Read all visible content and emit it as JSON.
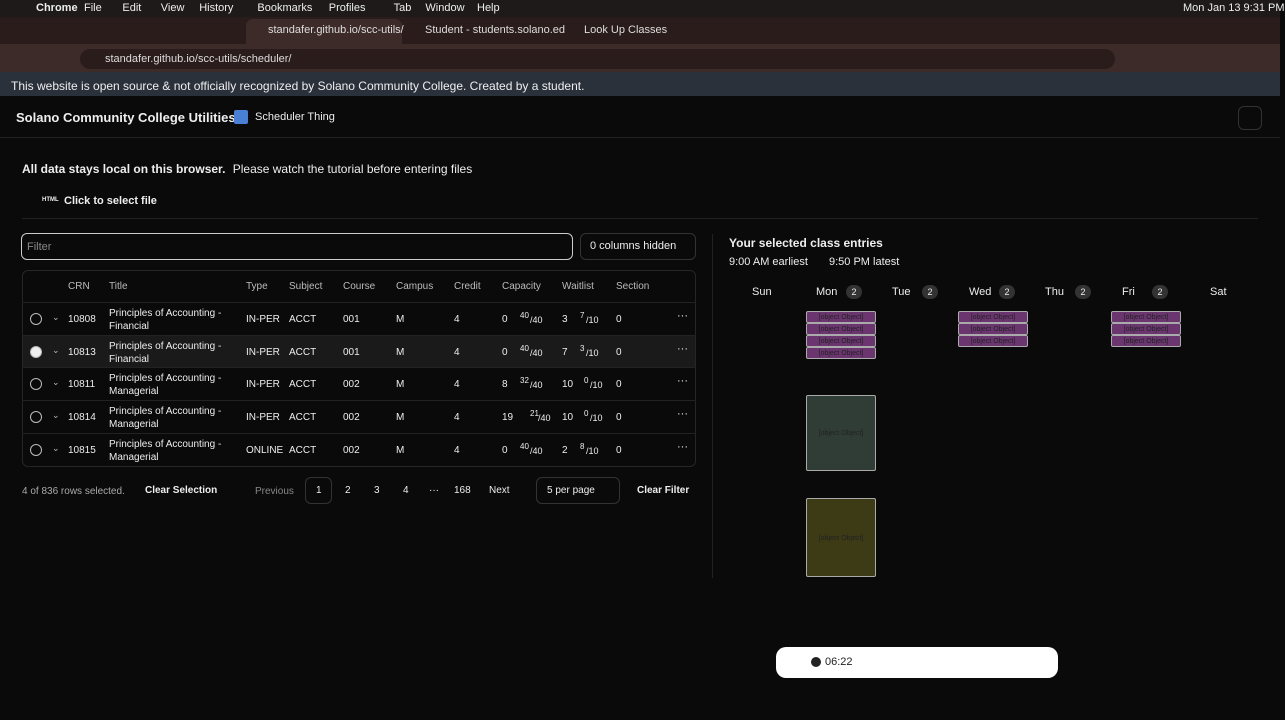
{
  "menubar": {
    "app": "Chrome",
    "items": [
      "File",
      "Edit",
      "View",
      "History",
      "Bookmarks",
      "Profiles",
      "Tab",
      "Window",
      "Help"
    ],
    "clock": "Mon Jan 13  9:31 PM"
  },
  "tabs": [
    "standafer.github.io/scc-utils/",
    "Student - students.solano.ed",
    "Look Up Classes"
  ],
  "url": "standafer.github.io/scc-utils/scheduler/",
  "banner": "This website is open source & not officially recognized by Solano Community College. Created by a student.",
  "nav": {
    "title": "Solano Community College Utilities",
    "link": "Scheduler Thing"
  },
  "notice": {
    "bold": "All data stays local on this browser.",
    "text": "Please watch the tutorial before entering files"
  },
  "file": {
    "badge": "HTML",
    "label": "Click to select file"
  },
  "filter": {
    "placeholder": "Filter",
    "columns": "0 columns hidden"
  },
  "table": {
    "headers": [
      "CRN",
      "Title",
      "Type",
      "Subject",
      "Course",
      "Campus",
      "Credit",
      "Capacity",
      "Waitlist",
      "Section"
    ],
    "rows": [
      {
        "crn": "10808",
        "title": "Principles of Accounting - Financial",
        "type": "IN-PER",
        "subject": "ACCT",
        "course": "001",
        "campus": "M",
        "credit": "4",
        "cap_open": "0",
        "cap_used": "40",
        "cap_max": "/40",
        "wl_open": "3",
        "wl_used": "7",
        "wl_max": "/10",
        "section": "0",
        "selected": false
      },
      {
        "crn": "10813",
        "title": "Principles of Accounting - Financial",
        "type": "IN-PER",
        "subject": "ACCT",
        "course": "001",
        "campus": "M",
        "credit": "4",
        "cap_open": "0",
        "cap_used": "40",
        "cap_max": "/40",
        "wl_open": "7",
        "wl_used": "3",
        "wl_max": "/10",
        "section": "0",
        "selected": true
      },
      {
        "crn": "10811",
        "title": "Principles of Accounting - Managerial",
        "type": "IN-PER",
        "subject": "ACCT",
        "course": "002",
        "campus": "M",
        "credit": "4",
        "cap_open": "8",
        "cap_used": "32",
        "cap_max": "/40",
        "wl_open": "10",
        "wl_used": "0",
        "wl_max": "/10",
        "section": "0",
        "selected": false
      },
      {
        "crn": "10814",
        "title": "Principles of Accounting - Managerial",
        "type": "IN-PER",
        "subject": "ACCT",
        "course": "002",
        "campus": "M",
        "credit": "4",
        "cap_open": "19",
        "cap_used": "21",
        "cap_max": "/40",
        "wl_open": "10",
        "wl_used": "0",
        "wl_max": "/10",
        "section": "0",
        "selected": false
      },
      {
        "crn": "10815",
        "title": "Principles of Accounting - Managerial",
        "type": "ONLINE",
        "subject": "ACCT",
        "course": "002",
        "campus": "M",
        "credit": "4",
        "cap_open": "0",
        "cap_used": "40",
        "cap_max": "/40",
        "wl_open": "2",
        "wl_used": "8",
        "wl_max": "/10",
        "section": "0",
        "selected": false
      }
    ]
  },
  "footer": {
    "selected": "4 of 836 rows selected.",
    "clear_selection": "Clear Selection",
    "previous": "Previous",
    "pages": [
      "1",
      "2",
      "3",
      "4",
      "···",
      "168"
    ],
    "next": "Next",
    "per_page": "5 per page",
    "clear_filter": "Clear Filter"
  },
  "calendar": {
    "title": "Your selected class entries",
    "earliest": "9:00 AM earliest",
    "latest": "9:50 PM latest",
    "days": [
      {
        "name": "Sun"
      },
      {
        "name": "Mon",
        "count": "2"
      },
      {
        "name": "Tue",
        "count": "2"
      },
      {
        "name": "Wed",
        "count": "2"
      },
      {
        "name": "Thu",
        "count": "2"
      },
      {
        "name": "Fri",
        "count": "2"
      },
      {
        "name": "Sat"
      }
    ],
    "blocks": [
      {
        "day": 1,
        "label": "MATH 021"
      },
      {
        "day": 1,
        "label": "MATH 021"
      },
      {
        "day": 1,
        "label": "MATH 021"
      },
      {
        "day": 1,
        "label": "TRAVEL VJO -> M"
      },
      {
        "day": 3,
        "label": "MATH 021"
      },
      {
        "day": 3,
        "label": "MATH 021"
      },
      {
        "day": 3,
        "label": "MATH 021"
      },
      {
        "day": 5,
        "label": "MATH 021"
      },
      {
        "day": 5,
        "label": "MATH 021"
      },
      {
        "day": 5,
        "label": "MATH 021"
      },
      {
        "day": 1,
        "label": "ADVM 101"
      },
      {
        "day": 1,
        "label": "ACCT 001"
      }
    ]
  },
  "recorder": {
    "time": "06:22"
  }
}
